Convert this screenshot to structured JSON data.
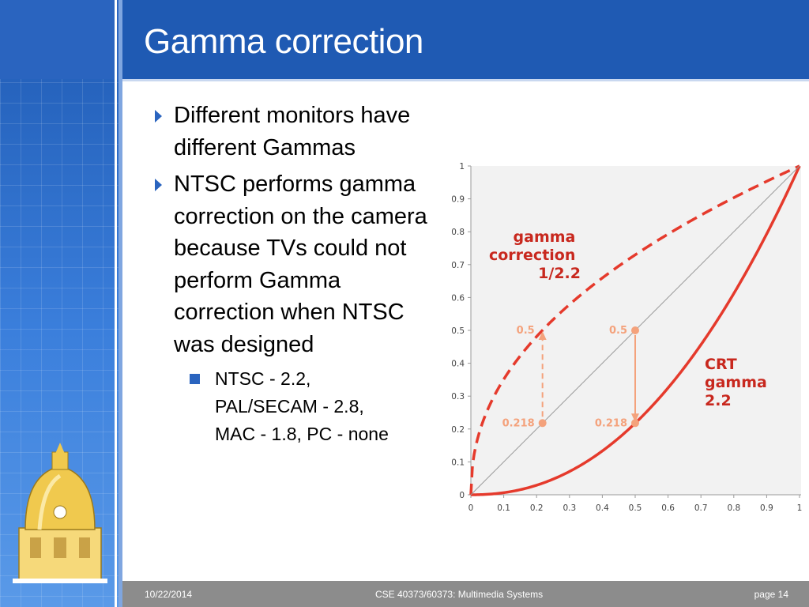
{
  "slide": {
    "title": "Gamma correction",
    "bullets": [
      "Different monitors have different Gammas",
      "NTSC performs gamma correction on the camera because TVs could not perform Gamma correction when NTSC was designed"
    ],
    "subbullet_lines": [
      "NTSC - 2.2,",
      "PAL/SECAM - 2.8,",
      "MAC - 1.8, PC - none"
    ],
    "icons": {
      "bullet": "triangle-right-icon",
      "subbullet": "square-bullet-icon",
      "logo": "golden-dome-logo"
    },
    "colors": {
      "accent": "#1f5ab3",
      "curve": "#e53a2c",
      "marker": "#f4a27c"
    }
  },
  "footer": {
    "date": "10/22/2014",
    "course": "CSE 40373/60373: Multimedia Systems",
    "page": "page 14"
  },
  "chart_data": {
    "type": "line",
    "x_ticks": [
      "0",
      "0.1",
      "0.2",
      "0.3",
      "0.4",
      "0.5",
      "0.6",
      "0.7",
      "0.8",
      "0.9",
      "1"
    ],
    "y_ticks": [
      "0",
      "0.1",
      "0.2",
      "0.3",
      "0.4",
      "0.5",
      "0.6",
      "0.7",
      "0.8",
      "0.9",
      "1"
    ],
    "xlim": [
      0,
      1
    ],
    "ylim": [
      0,
      1
    ],
    "grid": false,
    "series": [
      {
        "exponent": 0.4545,
        "style": "dashed"
      },
      {
        "exponent": 2.2,
        "style": "solid"
      },
      {
        "exponent": 1,
        "style": "thin"
      }
    ],
    "annotations": {
      "correction_label": [
        "gamma",
        "correction",
        "1/2.2"
      ],
      "crt_label": [
        "CRT",
        "gamma",
        "2.2"
      ],
      "points": [
        {
          "x": 0.218,
          "y": 0.5,
          "label": "0.5"
        },
        {
          "x": 0.218,
          "y": 0.218,
          "label": "0.218"
        },
        {
          "x": 0.5,
          "y": 0.5,
          "label": "0.5"
        },
        {
          "x": 0.5,
          "y": 0.218,
          "label": "0.218"
        }
      ]
    }
  }
}
